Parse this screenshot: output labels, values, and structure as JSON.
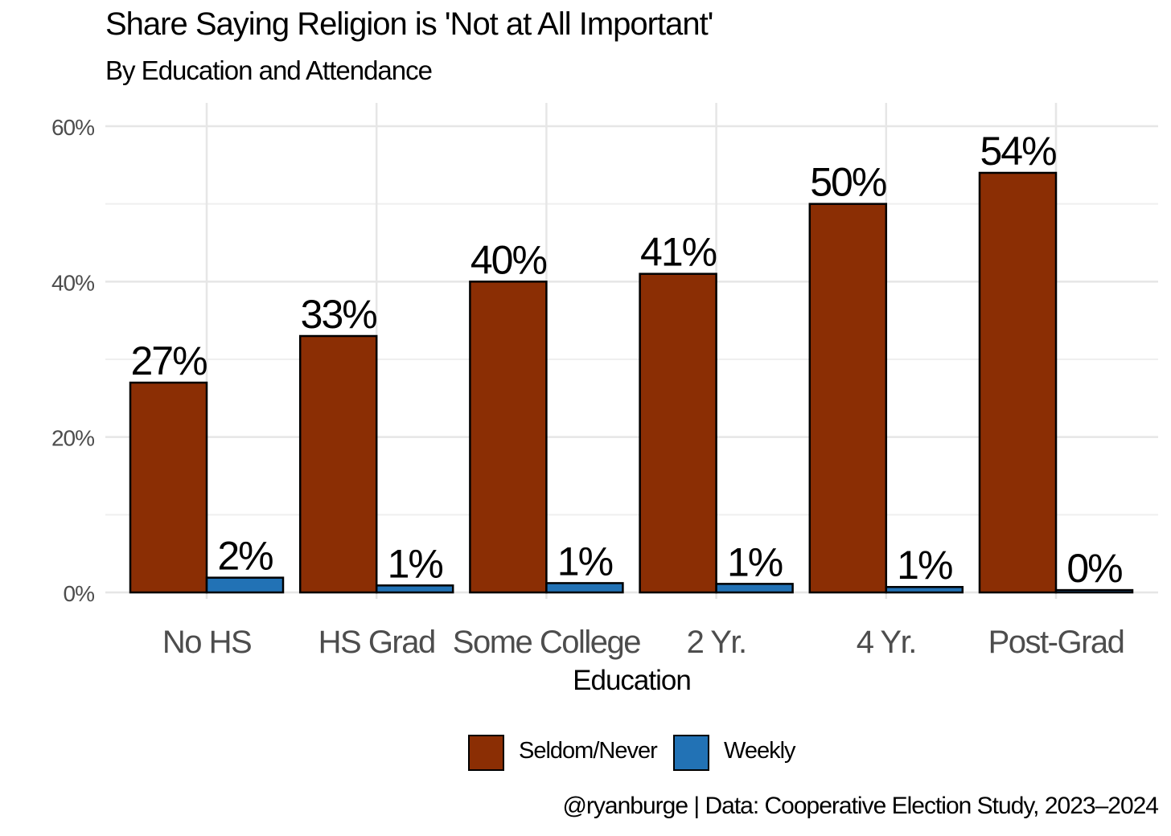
{
  "chart_data": {
    "type": "bar",
    "title": "Share Saying Religion is 'Not at All Important'",
    "subtitle": "By Education and Attendance",
    "xlabel": "Education",
    "ylabel": "",
    "categories": [
      "No HS",
      "HS Grad",
      "Some College",
      "2 Yr.",
      "4 Yr.",
      "Post-Grad"
    ],
    "series": [
      {
        "name": "Seldom/Never",
        "color": "#8B2E04",
        "values": [
          0.27,
          0.33,
          0.4,
          0.41,
          0.5,
          0.54
        ],
        "labels": [
          "27%",
          "33%",
          "40%",
          "41%",
          "50%",
          "54%"
        ]
      },
      {
        "name": "Weekly",
        "color": "#2272B5",
        "values": [
          0.019,
          0.009,
          0.012,
          0.011,
          0.007,
          0.003
        ],
        "labels": [
          "2%",
          "1%",
          "1%",
          "1%",
          "1%",
          "0%"
        ]
      }
    ],
    "ylim": [
      0,
      0.6
    ],
    "yticks": [
      0,
      0.2,
      0.4,
      0.6
    ],
    "ytick_labels": [
      "0%",
      "20%",
      "40%",
      "60%"
    ],
    "grid": true,
    "legend_position": "bottom",
    "caption": "@ryanburge | Data: Cooperative Election Study, 2023–2024"
  }
}
